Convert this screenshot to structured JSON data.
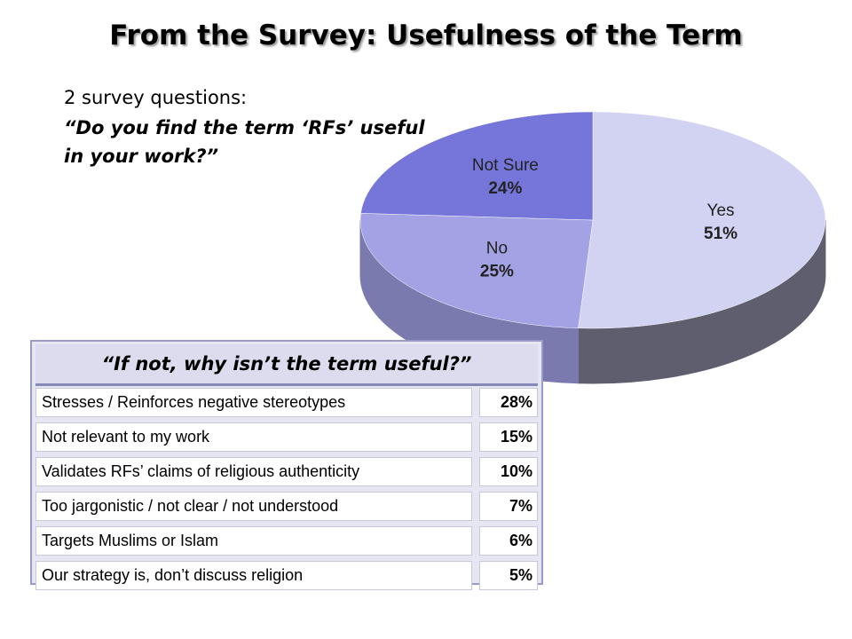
{
  "title": "From the Survey: Usefulness of the Term",
  "intro": "2 survey questions:",
  "question": "“Do you find the term ‘RFs’ useful in your work?”",
  "chart_data": {
    "type": "pie",
    "categories": [
      "Yes",
      "No",
      "Not Sure"
    ],
    "values": [
      51,
      25,
      24
    ],
    "value_labels": [
      "51%",
      "25%",
      "24%"
    ],
    "colors": [
      "#d2d2f2",
      "#a2a2e4",
      "#7676da"
    ],
    "side_colors": [
      "#5e5e6e",
      "#7a7aae",
      "#5858a8"
    ]
  },
  "table": {
    "header": "“If  not, why isn’t the term useful?”",
    "rows": [
      [
        "Stresses / Reinforces negative stereotypes",
        "28%"
      ],
      [
        "Not relevant to my work",
        "15%"
      ],
      [
        "Validates RFs’ claims of religious authenticity",
        "10%"
      ],
      [
        "Too jargonistic / not clear / not understood",
        "7%"
      ],
      [
        "Targets Muslims or Islam",
        "6%"
      ],
      [
        "Our strategy is, don’t discuss religion",
        "5%"
      ]
    ]
  }
}
